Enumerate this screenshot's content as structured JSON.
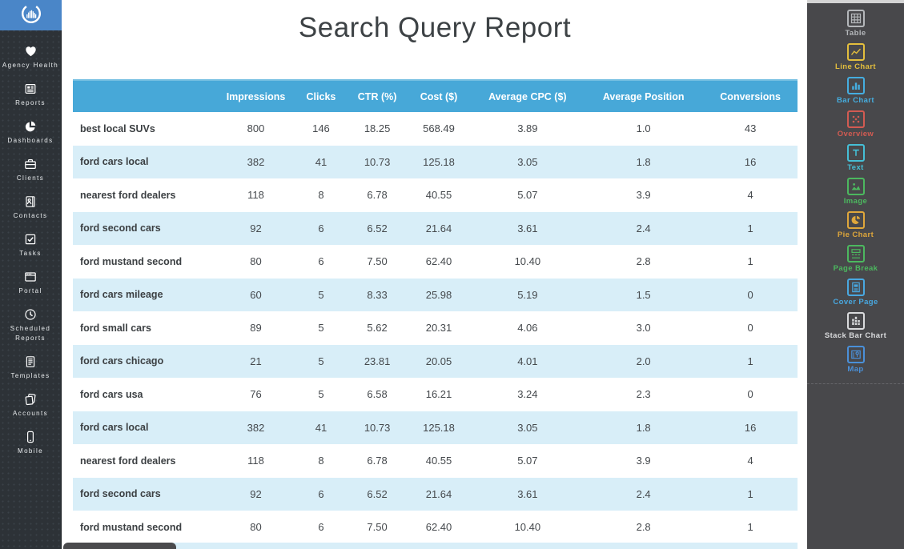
{
  "report": {
    "title": "Search Query Report",
    "table": {
      "columns": [
        "",
        "Impressions",
        "Clicks",
        "CTR (%)",
        "Cost ($)",
        "Average CPC ($)",
        "Average Position",
        "Conversions"
      ],
      "rows": [
        [
          "best local SUVs",
          "800",
          "146",
          "18.25",
          "568.49",
          "3.89",
          "1.0",
          "43"
        ],
        [
          "ford cars local",
          "382",
          "41",
          "10.73",
          "125.18",
          "3.05",
          "1.8",
          "16"
        ],
        [
          "nearest ford dealers",
          "118",
          "8",
          "6.78",
          "40.55",
          "5.07",
          "3.9",
          "4"
        ],
        [
          "ford second cars",
          "92",
          "6",
          "6.52",
          "21.64",
          "3.61",
          "2.4",
          "1"
        ],
        [
          "ford mustand second",
          "80",
          "6",
          "7.50",
          "62.40",
          "10.40",
          "2.8",
          "1"
        ],
        [
          "ford cars mileage",
          "60",
          "5",
          "8.33",
          "25.98",
          "5.19",
          "1.5",
          "0"
        ],
        [
          "ford small cars",
          "89",
          "5",
          "5.62",
          "20.31",
          "4.06",
          "3.0",
          "0"
        ],
        [
          "ford cars chicago",
          "21",
          "5",
          "23.81",
          "20.05",
          "4.01",
          "2.0",
          "1"
        ],
        [
          "ford cars usa",
          "76",
          "5",
          "6.58",
          "16.21",
          "3.24",
          "2.3",
          "0"
        ],
        [
          "ford cars local",
          "382",
          "41",
          "10.73",
          "125.18",
          "3.05",
          "1.8",
          "16"
        ],
        [
          "nearest ford dealers",
          "118",
          "8",
          "6.78",
          "40.55",
          "5.07",
          "3.9",
          "4"
        ],
        [
          "ford second cars",
          "92",
          "6",
          "6.52",
          "21.64",
          "3.61",
          "2.4",
          "1"
        ],
        [
          "ford mustand second",
          "80",
          "6",
          "7.50",
          "62.40",
          "10.40",
          "2.8",
          "1"
        ]
      ]
    }
  },
  "left_sidebar": {
    "logo_icon": "circular-bars-logo",
    "items": [
      {
        "label": "Agency Health",
        "icon": "heart-icon"
      },
      {
        "label": "Reports",
        "icon": "report-icon"
      },
      {
        "label": "Dashboards",
        "icon": "pie-dashboard-icon"
      },
      {
        "label": "Clients",
        "icon": "briefcase-icon"
      },
      {
        "label": "Contacts",
        "icon": "contacts-book-icon"
      },
      {
        "label": "Tasks",
        "icon": "checkbox-icon"
      },
      {
        "label": "Portal",
        "icon": "browser-window-icon"
      },
      {
        "label": "Scheduled Reports",
        "icon": "clock-icon"
      },
      {
        "label": "Templates",
        "icon": "document-icon"
      },
      {
        "label": "Accounts",
        "icon": "stacked-pages-icon"
      },
      {
        "label": "Mobile",
        "icon": "smartphone-icon"
      }
    ]
  },
  "right_sidebar": {
    "widgets": [
      {
        "label": "Table",
        "icon": "table-grid-icon",
        "color": "#b4b7ba"
      },
      {
        "label": "Line Chart",
        "icon": "line-chart-icon",
        "color": "#e3be3d"
      },
      {
        "label": "Bar Chart",
        "icon": "bar-chart-icon",
        "color": "#45aee0"
      },
      {
        "label": "Overview",
        "icon": "overview-dots-icon",
        "color": "#d25b52"
      },
      {
        "label": "Text",
        "icon": "text-t-icon",
        "color": "#45bfd6"
      },
      {
        "label": "Image",
        "icon": "image-icon",
        "color": "#4cb85f"
      },
      {
        "label": "Pie Chart",
        "icon": "pie-chart-icon",
        "color": "#dfa73b"
      },
      {
        "label": "Page Break",
        "icon": "page-break-icon",
        "color": "#4cb85f"
      },
      {
        "label": "Cover Page",
        "icon": "cover-page-icon",
        "color": "#49a8e0"
      },
      {
        "label": "Stack Bar Chart",
        "icon": "stack-bar-chart-icon",
        "color": "#d9dadc"
      },
      {
        "label": "Map",
        "icon": "map-icon",
        "color": "#4a90d9"
      }
    ]
  },
  "colors": {
    "header_blue": "#47a8d8",
    "row_stripe_blue": "#d8eef8",
    "left_sidebar_bg": "#2d3237",
    "right_sidebar_bg": "#48484b",
    "logo_bg": "#4a86c8",
    "title_text": "#3d4245"
  }
}
